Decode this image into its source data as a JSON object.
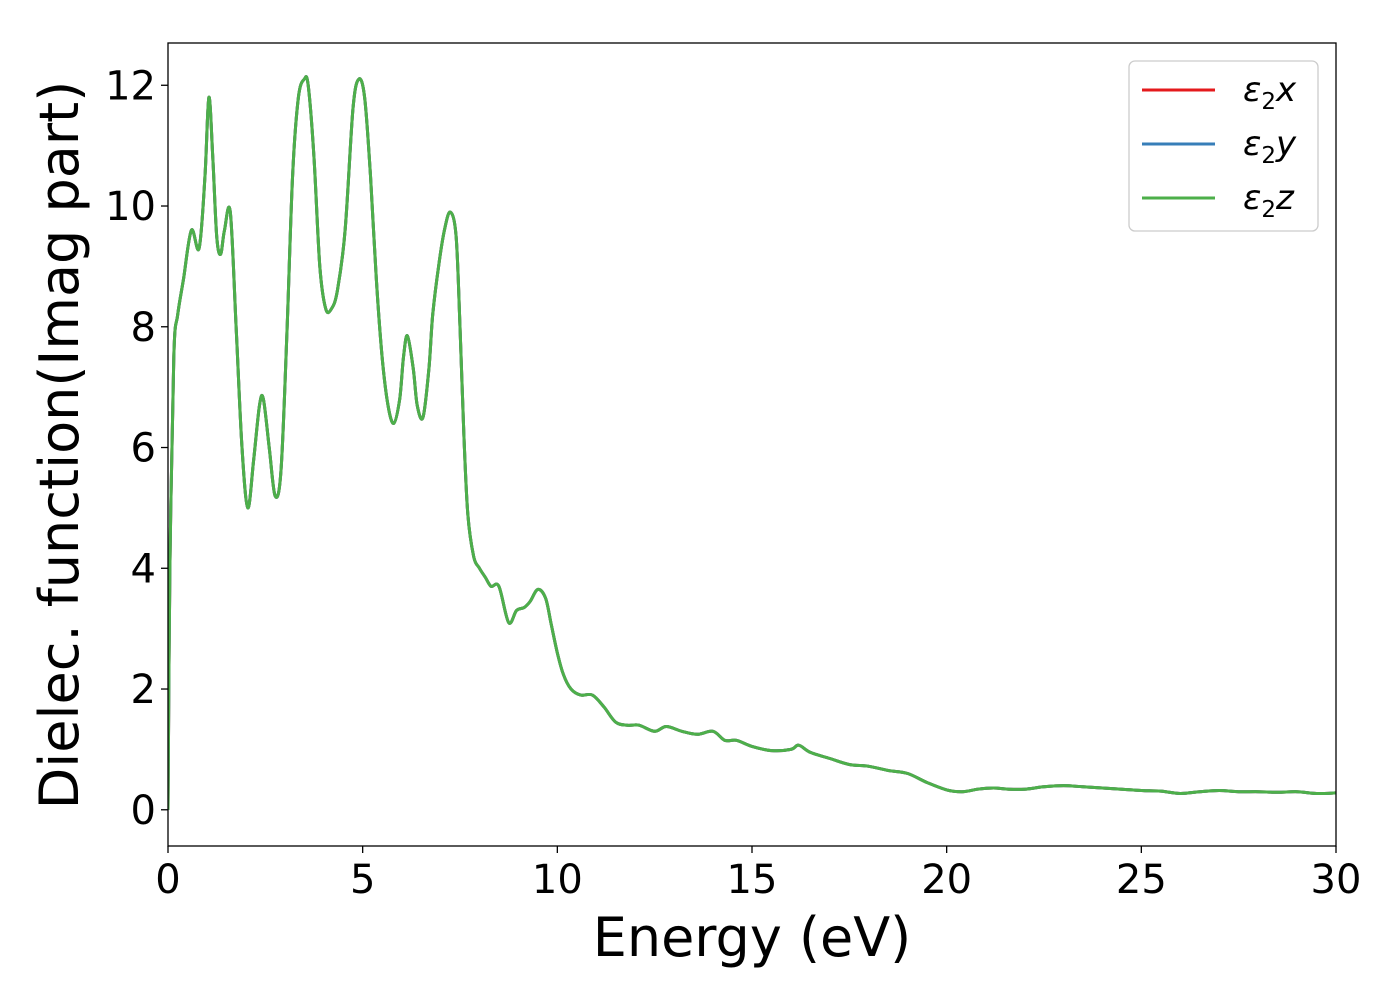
{
  "chart_data": {
    "type": "line",
    "title": "",
    "xlabel": "Energy (eV)",
    "ylabel": "Dielec. function(Imag part)",
    "xlim": [
      0,
      30
    ],
    "ylim": [
      -0.6,
      12.7
    ],
    "xticks": [
      0,
      5,
      10,
      15,
      20,
      25,
      30
    ],
    "xtick_labels": [
      "0",
      "5",
      "10",
      "15",
      "20",
      "25",
      "30"
    ],
    "yticks": [
      0,
      2,
      4,
      6,
      8,
      10,
      12
    ],
    "ytick_labels": [
      "0",
      "2",
      "4",
      "6",
      "8",
      "10",
      "12"
    ],
    "grid": false,
    "legend_position": "top-right",
    "x": [
      0.0,
      0.05,
      0.15,
      0.25,
      0.4,
      0.6,
      0.8,
      0.95,
      1.05,
      1.15,
      1.25,
      1.35,
      1.45,
      1.6,
      1.75,
      1.9,
      2.05,
      2.2,
      2.35,
      2.45,
      2.6,
      2.75,
      2.9,
      3.05,
      3.2,
      3.35,
      3.5,
      3.6,
      3.75,
      3.9,
      4.05,
      4.2,
      4.35,
      4.55,
      4.75,
      4.9,
      5.05,
      5.2,
      5.35,
      5.5,
      5.65,
      5.8,
      5.95,
      6.05,
      6.15,
      6.3,
      6.4,
      6.55,
      6.7,
      6.8,
      6.95,
      7.1,
      7.25,
      7.4,
      7.5,
      7.6,
      7.7,
      7.85,
      8.0,
      8.15,
      8.3,
      8.5,
      8.75,
      8.95,
      9.15,
      9.3,
      9.5,
      9.7,
      9.85,
      10.0,
      10.15,
      10.35,
      10.6,
      10.9,
      11.2,
      11.5,
      11.8,
      12.1,
      12.5,
      12.8,
      13.2,
      13.6,
      14.0,
      14.3,
      14.6,
      15.0,
      15.5,
      16.0,
      16.2,
      16.5,
      17.0,
      17.5,
      18.0,
      18.5,
      19.0,
      19.5,
      20.0,
      20.4,
      20.8,
      21.2,
      21.6,
      22.0,
      22.5,
      23.0,
      23.5,
      24.0,
      24.5,
      25.0,
      25.5,
      26.0,
      26.5,
      27.0,
      27.5,
      28.0,
      28.5,
      29.0,
      29.5,
      30.0
    ],
    "series": [
      {
        "name": "ε2x",
        "color": "#e41a1c",
        "values": [
          0.0,
          4.0,
          7.5,
          8.2,
          8.8,
          9.6,
          9.3,
          10.5,
          11.8,
          10.8,
          9.5,
          9.2,
          9.6,
          9.9,
          8.0,
          6.0,
          5.0,
          5.8,
          6.7,
          6.8,
          6.0,
          5.2,
          5.6,
          7.8,
          10.5,
          11.8,
          12.1,
          12.0,
          10.8,
          9.0,
          8.3,
          8.3,
          8.6,
          9.6,
          11.6,
          12.1,
          11.8,
          10.5,
          8.8,
          7.5,
          6.7,
          6.4,
          6.8,
          7.5,
          7.85,
          7.3,
          6.7,
          6.5,
          7.3,
          8.2,
          9.0,
          9.6,
          9.9,
          9.5,
          8.0,
          6.2,
          4.9,
          4.2,
          4.0,
          3.85,
          3.7,
          3.7,
          3.1,
          3.3,
          3.35,
          3.45,
          3.65,
          3.5,
          3.05,
          2.6,
          2.25,
          2.0,
          1.9,
          1.9,
          1.7,
          1.45,
          1.4,
          1.4,
          1.3,
          1.38,
          1.3,
          1.25,
          1.3,
          1.15,
          1.15,
          1.05,
          0.98,
          1.0,
          1.07,
          0.95,
          0.85,
          0.75,
          0.72,
          0.65,
          0.6,
          0.45,
          0.33,
          0.3,
          0.34,
          0.36,
          0.34,
          0.34,
          0.38,
          0.4,
          0.38,
          0.36,
          0.34,
          0.32,
          0.31,
          0.27,
          0.3,
          0.32,
          0.3,
          0.3,
          0.29,
          0.3,
          0.27,
          0.28
        ]
      },
      {
        "name": "ε2y",
        "color": "#377eb8",
        "values": [
          0.0,
          4.0,
          7.5,
          8.2,
          8.8,
          9.6,
          9.3,
          10.5,
          11.8,
          10.8,
          9.5,
          9.2,
          9.6,
          9.9,
          8.0,
          6.0,
          5.0,
          5.8,
          6.7,
          6.8,
          6.0,
          5.2,
          5.6,
          7.8,
          10.5,
          11.8,
          12.1,
          12.0,
          10.8,
          9.0,
          8.3,
          8.3,
          8.6,
          9.6,
          11.6,
          12.1,
          11.8,
          10.5,
          8.8,
          7.5,
          6.7,
          6.4,
          6.8,
          7.5,
          7.85,
          7.3,
          6.7,
          6.5,
          7.3,
          8.2,
          9.0,
          9.6,
          9.9,
          9.5,
          8.0,
          6.2,
          4.9,
          4.2,
          4.0,
          3.85,
          3.7,
          3.7,
          3.1,
          3.3,
          3.35,
          3.45,
          3.65,
          3.5,
          3.05,
          2.6,
          2.25,
          2.0,
          1.9,
          1.9,
          1.7,
          1.45,
          1.4,
          1.4,
          1.3,
          1.38,
          1.3,
          1.25,
          1.3,
          1.15,
          1.15,
          1.05,
          0.98,
          1.0,
          1.07,
          0.95,
          0.85,
          0.75,
          0.72,
          0.65,
          0.6,
          0.45,
          0.33,
          0.3,
          0.34,
          0.36,
          0.34,
          0.34,
          0.38,
          0.4,
          0.38,
          0.36,
          0.34,
          0.32,
          0.31,
          0.27,
          0.3,
          0.32,
          0.3,
          0.3,
          0.29,
          0.3,
          0.27,
          0.28
        ]
      },
      {
        "name": "ε2z",
        "color": "#4daf4a",
        "values": [
          0.0,
          4.0,
          7.5,
          8.2,
          8.8,
          9.6,
          9.3,
          10.5,
          11.8,
          10.8,
          9.5,
          9.2,
          9.6,
          9.9,
          8.0,
          6.0,
          5.0,
          5.8,
          6.7,
          6.8,
          6.0,
          5.2,
          5.6,
          7.8,
          10.5,
          11.8,
          12.1,
          12.0,
          10.8,
          9.0,
          8.3,
          8.3,
          8.6,
          9.6,
          11.6,
          12.1,
          11.8,
          10.5,
          8.8,
          7.5,
          6.7,
          6.4,
          6.8,
          7.5,
          7.85,
          7.3,
          6.7,
          6.5,
          7.3,
          8.2,
          9.0,
          9.6,
          9.9,
          9.5,
          8.0,
          6.2,
          4.9,
          4.2,
          4.0,
          3.85,
          3.7,
          3.7,
          3.1,
          3.3,
          3.35,
          3.45,
          3.65,
          3.5,
          3.05,
          2.6,
          2.25,
          2.0,
          1.9,
          1.9,
          1.7,
          1.45,
          1.4,
          1.4,
          1.3,
          1.38,
          1.3,
          1.25,
          1.3,
          1.15,
          1.15,
          1.05,
          0.98,
          1.0,
          1.07,
          0.95,
          0.85,
          0.75,
          0.72,
          0.65,
          0.6,
          0.45,
          0.33,
          0.3,
          0.34,
          0.36,
          0.34,
          0.34,
          0.38,
          0.4,
          0.38,
          0.36,
          0.34,
          0.32,
          0.31,
          0.27,
          0.3,
          0.32,
          0.3,
          0.3,
          0.29,
          0.3,
          0.27,
          0.28
        ]
      }
    ],
    "legend": [
      {
        "symbol": "ε",
        "sub": "2",
        "var": "x",
        "color": "#e41a1c"
      },
      {
        "symbol": "ε",
        "sub": "2",
        "var": "y",
        "color": "#377eb8"
      },
      {
        "symbol": "ε",
        "sub": "2",
        "var": "z",
        "color": "#4daf4a"
      }
    ]
  }
}
